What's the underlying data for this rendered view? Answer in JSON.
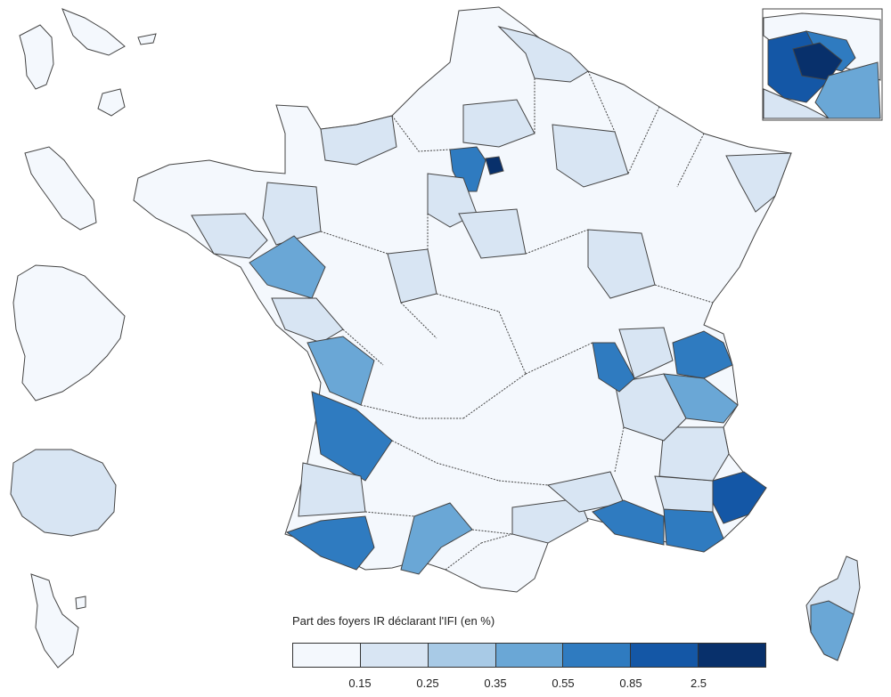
{
  "legend": {
    "title": "Part des foyers IR déclarant l'IFI (en %)",
    "ticks": [
      "0.15",
      "0.25",
      "0.35",
      "0.55",
      "0.85",
      "2.5"
    ],
    "colors": [
      "#f4f8fd",
      "#d8e5f3",
      "#a8cae6",
      "#6aa7d6",
      "#2f7bc0",
      "#1457a6",
      "#08306b"
    ]
  },
  "regions": {
    "overseas": [
      "Guadeloupe",
      "Martinique",
      "Guyane",
      "La Réunion",
      "Mayotte"
    ],
    "inset": "Île-de-France",
    "corsica": "Corse"
  }
}
